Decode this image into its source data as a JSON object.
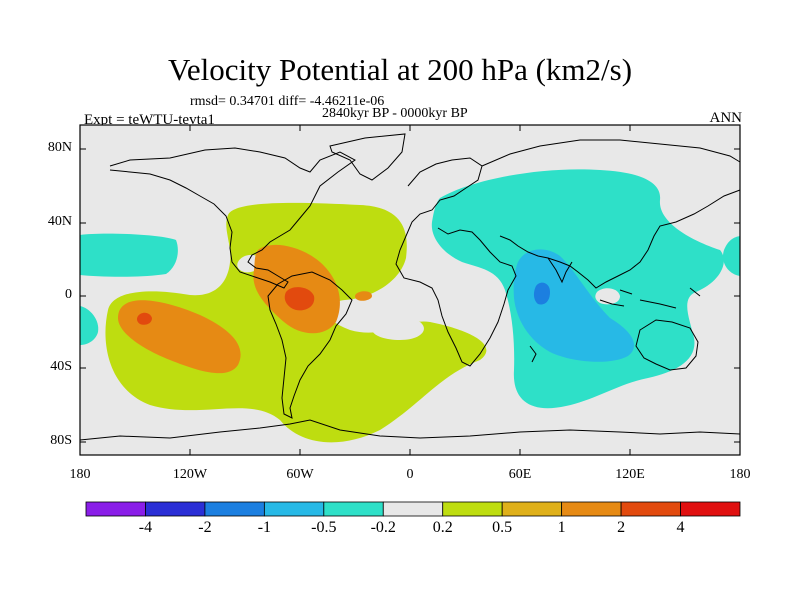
{
  "title": "Velocity Potential at 200 hPa (km2/s)",
  "stats": "rmsd= 0.34701  diff= -4.46211e-06",
  "period": "2840kyr BP - 0000kyr BP",
  "experiment": "Expt = teWTU-tevta1",
  "season": "ANN",
  "axes": {
    "y_ticks": [
      "80N",
      "40N",
      "0",
      "40S",
      "80S"
    ],
    "x_ticks": [
      "180",
      "120W",
      "60W",
      "0",
      "60E",
      "120E",
      "180"
    ]
  },
  "colorbar": {
    "colors": [
      "#8a1ee8",
      "#2b2fd6",
      "#1c7fe0",
      "#27b9e6",
      "#2ee0c8",
      "#e8e8e8",
      "#bedd10",
      "#dfb01a",
      "#e68a14",
      "#e24a0e",
      "#e01010"
    ],
    "labels": [
      "-4",
      "-2",
      "-1",
      "-0.5",
      "-0.2",
      "0.2",
      "0.5",
      "1",
      "2",
      "4"
    ]
  },
  "map_colors": {
    "neutral": "#e8e8e8",
    "weak_positive": "#bedd10",
    "moderate_positive": "#e68a14",
    "strong_positive": "#e24a0e",
    "weak_negative": "#2ee0c8",
    "moderate_negative": "#27b9e6",
    "strong_negative": "#1c7fe0"
  }
}
